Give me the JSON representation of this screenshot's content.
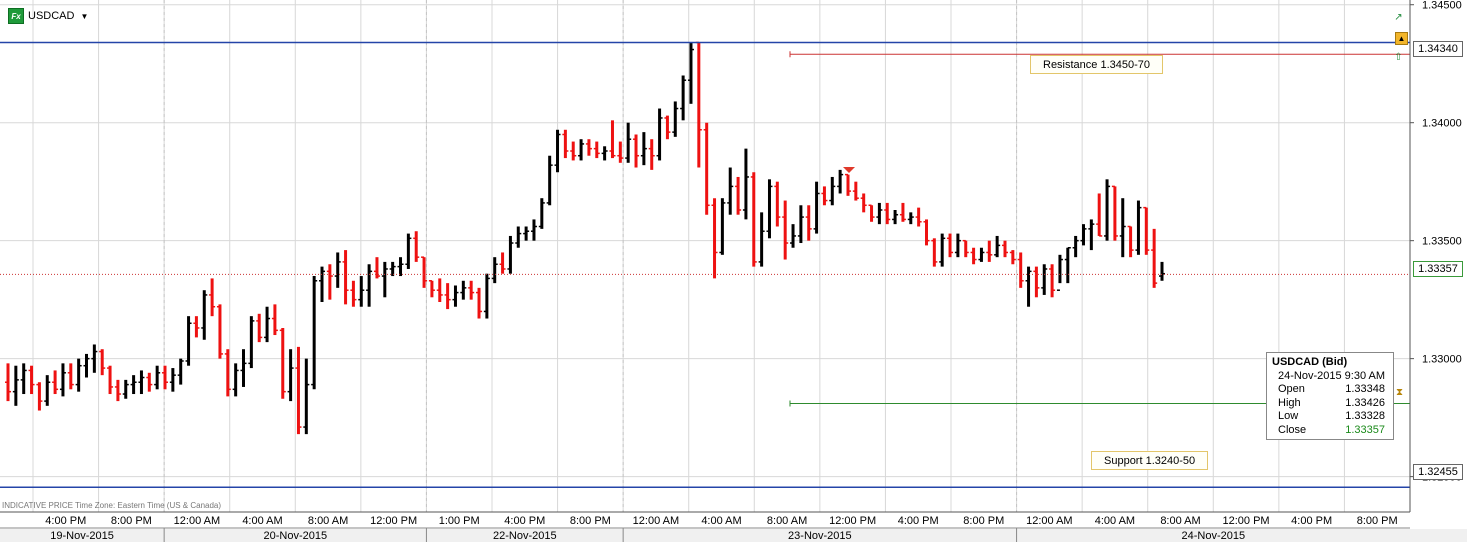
{
  "symbol": {
    "name": "USDCAD",
    "badge": "Fx",
    "dropdown_icon": "caret-down-icon"
  },
  "footer_note": "INDICATIVE PRICE   Time Zone: Eastern Time (US & Canada)",
  "colors": {
    "up_bar": "#000000",
    "down_bar": "#ee1111",
    "resistance_line": "#2444a8",
    "support_line": "#2444a8",
    "last_price_line": "#cc3333",
    "resistance_marker": "#cc3333",
    "support_marker": "#2e8b2e",
    "grid": "#d8d8d8"
  },
  "levels": {
    "resistance": {
      "label": "Resistance 1.3450-70",
      "value": 1.3434,
      "tag": "1.34340"
    },
    "support": {
      "label": "Support 1.3240-50",
      "value": 1.32455,
      "tag": "1.32455"
    },
    "last_price": {
      "value": 1.33357,
      "tag": "1.33357"
    },
    "resistance_marker_value": 1.3429,
    "support_marker_value": 1.3281
  },
  "info_box": {
    "title": "USDCAD (Bid)",
    "datetime": "24-Nov-2015 9:30 AM",
    "rows": [
      {
        "label": "Open",
        "value": "1.33348"
      },
      {
        "label": "High",
        "value": "1.33426"
      },
      {
        "label": "Low",
        "value": "1.33328"
      },
      {
        "label": "Close",
        "value": "1.33357"
      }
    ]
  },
  "right_icons": [
    "trend-up-icon",
    "collapse-up-icon",
    "alert-arrow-icon",
    "hourglass-icon"
  ],
  "chart_data": {
    "type": "ohlc",
    "title": "",
    "ylim": [
      1.3235,
      1.3452
    ],
    "yticks": [
      "1.34500",
      "1.34000",
      "1.33500",
      "1.33000",
      "1.32500"
    ],
    "ytick_values": [
      1.345,
      1.34,
      1.335,
      1.33,
      1.325
    ],
    "x_time_labels": [
      "4:00 PM",
      "8:00 PM",
      "12:00 AM",
      "4:00 AM",
      "8:00 AM",
      "12:00 PM",
      "1:00 PM",
      "4:00 PM",
      "8:00 PM",
      "12:00 AM",
      "4:00 AM",
      "8:00 AM",
      "12:00 PM",
      "4:00 PM",
      "8:00 PM",
      "12:00 AM",
      "4:00 AM",
      "8:00 AM",
      "12:00 PM",
      "4:00 PM",
      "8:00 PM"
    ],
    "x_date_labels": [
      "19-Nov-2015",
      "20-Nov-2015",
      "22-Nov-2015",
      "23-Nov-2015",
      "24-Nov-2015"
    ],
    "grid": true,
    "bars": [
      [
        1.329,
        1.3298,
        1.3282,
        1.3286
      ],
      [
        1.3286,
        1.3297,
        1.328,
        1.3291
      ],
      [
        1.3291,
        1.3298,
        1.3285,
        1.3295
      ],
      [
        1.3295,
        1.3297,
        1.3285,
        1.3289
      ],
      [
        1.3289,
        1.329,
        1.3278,
        1.3282
      ],
      [
        1.3282,
        1.3293,
        1.328,
        1.329
      ],
      [
        1.329,
        1.3295,
        1.3285,
        1.3287
      ],
      [
        1.3287,
        1.3298,
        1.3284,
        1.3294
      ],
      [
        1.3294,
        1.3298,
        1.3287,
        1.3289
      ],
      [
        1.3289,
        1.33,
        1.3286,
        1.3297
      ],
      [
        1.3297,
        1.3302,
        1.3292,
        1.33
      ],
      [
        1.33,
        1.3306,
        1.3294,
        1.3303
      ],
      [
        1.3303,
        1.3304,
        1.3293,
        1.3296
      ],
      [
        1.3296,
        1.3297,
        1.3285,
        1.3288
      ],
      [
        1.3288,
        1.3291,
        1.3282,
        1.3285
      ],
      [
        1.3285,
        1.3291,
        1.3283,
        1.3289
      ],
      [
        1.3289,
        1.3293,
        1.3285,
        1.329
      ],
      [
        1.329,
        1.3295,
        1.3285,
        1.3292
      ],
      [
        1.3292,
        1.3294,
        1.3286,
        1.3289
      ],
      [
        1.3289,
        1.3297,
        1.3287,
        1.3294
      ],
      [
        1.3294,
        1.3297,
        1.3287,
        1.329
      ],
      [
        1.329,
        1.3296,
        1.3286,
        1.3293
      ],
      [
        1.3293,
        1.33,
        1.3289,
        1.3299
      ],
      [
        1.3299,
        1.3318,
        1.3297,
        1.3315
      ],
      [
        1.3315,
        1.3318,
        1.3309,
        1.3313
      ],
      [
        1.3313,
        1.3329,
        1.3308,
        1.3327
      ],
      [
        1.3327,
        1.3334,
        1.3318,
        1.3322
      ],
      [
        1.3322,
        1.3323,
        1.33,
        1.3302
      ],
      [
        1.3302,
        1.3304,
        1.3284,
        1.3287
      ],
      [
        1.3287,
        1.3298,
        1.3284,
        1.3295
      ],
      [
        1.3295,
        1.3304,
        1.3288,
        1.3298
      ],
      [
        1.3298,
        1.3318,
        1.3296,
        1.3316
      ],
      [
        1.3316,
        1.3319,
        1.3307,
        1.3309
      ],
      [
        1.3309,
        1.3322,
        1.3307,
        1.3317
      ],
      [
        1.3317,
        1.3323,
        1.331,
        1.3312
      ],
      [
        1.3312,
        1.3313,
        1.3283,
        1.3286
      ],
      [
        1.3286,
        1.3304,
        1.3282,
        1.3296
      ],
      [
        1.3296,
        1.3305,
        1.3268,
        1.3271
      ],
      [
        1.3271,
        1.33,
        1.3268,
        1.3289
      ],
      [
        1.3289,
        1.3335,
        1.3287,
        1.3333
      ],
      [
        1.3333,
        1.3339,
        1.3324,
        1.3337
      ],
      [
        1.3337,
        1.334,
        1.3325,
        1.3335
      ],
      [
        1.3335,
        1.3345,
        1.333,
        1.3341
      ],
      [
        1.3341,
        1.3346,
        1.3323,
        1.3329
      ],
      [
        1.3329,
        1.3333,
        1.3322,
        1.3325
      ],
      [
        1.3325,
        1.3335,
        1.3322,
        1.3329
      ],
      [
        1.3329,
        1.334,
        1.3322,
        1.3337
      ],
      [
        1.3337,
        1.3343,
        1.3334,
        1.3335
      ],
      [
        1.3335,
        1.3341,
        1.3326,
        1.3338
      ],
      [
        1.3338,
        1.3341,
        1.3335,
        1.3339
      ],
      [
        1.3339,
        1.3343,
        1.3335,
        1.334
      ],
      [
        1.334,
        1.3353,
        1.3338,
        1.3351
      ],
      [
        1.3351,
        1.3354,
        1.3341,
        1.3343
      ],
      [
        1.3343,
        1.3343,
        1.333,
        1.3333
      ],
      [
        1.3333,
        1.3333,
        1.3326,
        1.3329
      ],
      [
        1.3329,
        1.3334,
        1.3324,
        1.3327
      ],
      [
        1.3327,
        1.3332,
        1.3321,
        1.3325
      ],
      [
        1.3325,
        1.3331,
        1.3322,
        1.3328
      ],
      [
        1.3328,
        1.3333,
        1.3325,
        1.333
      ],
      [
        1.333,
        1.3333,
        1.3325,
        1.3328
      ],
      [
        1.3328,
        1.333,
        1.3317,
        1.332
      ],
      [
        1.332,
        1.3336,
        1.3317,
        1.3334
      ],
      [
        1.3334,
        1.3343,
        1.3332,
        1.334
      ],
      [
        1.334,
        1.3345,
        1.3336,
        1.3338
      ],
      [
        1.3338,
        1.3352,
        1.3336,
        1.3349
      ],
      [
        1.3349,
        1.3356,
        1.3347,
        1.3353
      ],
      [
        1.3353,
        1.3356,
        1.335,
        1.3354
      ],
      [
        1.3354,
        1.3359,
        1.335,
        1.3356
      ],
      [
        1.3356,
        1.3368,
        1.3355,
        1.3366
      ],
      [
        1.3366,
        1.3386,
        1.3365,
        1.3382
      ],
      [
        1.3382,
        1.3397,
        1.3379,
        1.3395
      ],
      [
        1.3395,
        1.3397,
        1.3385,
        1.3388
      ],
      [
        1.3388,
        1.3392,
        1.3384,
        1.3386
      ],
      [
        1.3386,
        1.3393,
        1.3384,
        1.3391
      ],
      [
        1.3391,
        1.3393,
        1.3386,
        1.3389
      ],
      [
        1.3389,
        1.3392,
        1.3385,
        1.3387
      ],
      [
        1.3387,
        1.339,
        1.3384,
        1.3388
      ],
      [
        1.3388,
        1.3401,
        1.3385,
        1.3386
      ],
      [
        1.3386,
        1.3392,
        1.3383,
        1.3385
      ],
      [
        1.3385,
        1.34,
        1.3383,
        1.3393
      ],
      [
        1.3393,
        1.3395,
        1.3381,
        1.3386
      ],
      [
        1.3386,
        1.3396,
        1.3382,
        1.3389
      ],
      [
        1.3389,
        1.3393,
        1.338,
        1.3386
      ],
      [
        1.3386,
        1.3406,
        1.3384,
        1.3402
      ],
      [
        1.3402,
        1.3403,
        1.3393,
        1.3396
      ],
      [
        1.3396,
        1.3409,
        1.3394,
        1.3406
      ],
      [
        1.3406,
        1.342,
        1.3401,
        1.3418
      ],
      [
        1.3418,
        1.3434,
        1.3408,
        1.3431
      ],
      [
        1.3434,
        1.3434,
        1.3381,
        1.3397
      ],
      [
        1.3397,
        1.34,
        1.3361,
        1.3365
      ],
      [
        1.3365,
        1.3368,
        1.3334,
        1.3345
      ],
      [
        1.3345,
        1.3368,
        1.3344,
        1.3366
      ],
      [
        1.3366,
        1.3381,
        1.3361,
        1.3373
      ],
      [
        1.3373,
        1.3377,
        1.3361,
        1.3363
      ],
      [
        1.3363,
        1.3389,
        1.3359,
        1.3377
      ],
      [
        1.3377,
        1.3379,
        1.3339,
        1.3341
      ],
      [
        1.3341,
        1.3362,
        1.3339,
        1.3354
      ],
      [
        1.3354,
        1.3376,
        1.3351,
        1.3373
      ],
      [
        1.3373,
        1.3375,
        1.3356,
        1.336
      ],
      [
        1.336,
        1.3367,
        1.3342,
        1.3349
      ],
      [
        1.3349,
        1.3357,
        1.3347,
        1.3352
      ],
      [
        1.3352,
        1.3365,
        1.3349,
        1.336
      ],
      [
        1.336,
        1.3365,
        1.335,
        1.3355
      ],
      [
        1.3355,
        1.3375,
        1.3353,
        1.337
      ],
      [
        1.337,
        1.3373,
        1.3365,
        1.3367
      ],
      [
        1.3367,
        1.3377,
        1.3365,
        1.3373
      ],
      [
        1.3373,
        1.338,
        1.337,
        1.3378
      ],
      [
        1.3378,
        1.3378,
        1.3369,
        1.3371
      ],
      [
        1.3371,
        1.3375,
        1.3367,
        1.3368
      ],
      [
        1.3368,
        1.337,
        1.3362,
        1.3365
      ],
      [
        1.3365,
        1.3365,
        1.3358,
        1.336
      ],
      [
        1.336,
        1.3366,
        1.3357,
        1.3363
      ],
      [
        1.3363,
        1.3366,
        1.3357,
        1.3359
      ],
      [
        1.3359,
        1.3363,
        1.3357,
        1.3361
      ],
      [
        1.3361,
        1.3366,
        1.3358,
        1.3359
      ],
      [
        1.3359,
        1.3362,
        1.3357,
        1.336
      ],
      [
        1.336,
        1.3364,
        1.3356,
        1.3358
      ],
      [
        1.3358,
        1.3359,
        1.3348,
        1.335
      ],
      [
        1.335,
        1.3351,
        1.3339,
        1.3341
      ],
      [
        1.3341,
        1.3353,
        1.3339,
        1.3351
      ],
      [
        1.3351,
        1.3353,
        1.3343,
        1.3345
      ],
      [
        1.3345,
        1.3353,
        1.3343,
        1.335
      ],
      [
        1.335,
        1.335,
        1.3343,
        1.3345
      ],
      [
        1.3345,
        1.3347,
        1.334,
        1.3342
      ],
      [
        1.3342,
        1.3347,
        1.3341,
        1.3345
      ],
      [
        1.3345,
        1.335,
        1.3341,
        1.3344
      ],
      [
        1.3344,
        1.3352,
        1.3343,
        1.3348
      ],
      [
        1.3348,
        1.335,
        1.3343,
        1.3345
      ],
      [
        1.3345,
        1.3346,
        1.334,
        1.3342
      ],
      [
        1.3342,
        1.3345,
        1.333,
        1.3333
      ],
      [
        1.3333,
        1.3339,
        1.3322,
        1.3337
      ],
      [
        1.3337,
        1.3339,
        1.3326,
        1.333
      ],
      [
        1.333,
        1.334,
        1.3327,
        1.3338
      ],
      [
        1.3338,
        1.334,
        1.3326,
        1.3329
      ],
      [
        1.3329,
        1.3344,
        1.3332,
        1.3342
      ],
      [
        1.3342,
        1.3347,
        1.3332,
        1.3347
      ],
      [
        1.3347,
        1.3352,
        1.3343,
        1.335
      ],
      [
        1.335,
        1.3357,
        1.3348,
        1.3355
      ],
      [
        1.3355,
        1.3359,
        1.3346,
        1.3357
      ],
      [
        1.3357,
        1.337,
        1.3352,
        1.3352
      ],
      [
        1.3352,
        1.3376,
        1.335,
        1.3373
      ],
      [
        1.3373,
        1.3373,
        1.335,
        1.3352
      ],
      [
        1.3352,
        1.3368,
        1.3343,
        1.3356
      ],
      [
        1.3356,
        1.3356,
        1.3343,
        1.3346
      ],
      [
        1.3346,
        1.3367,
        1.3344,
        1.3364
      ],
      [
        1.3364,
        1.3364,
        1.3344,
        1.3346
      ],
      [
        1.3346,
        1.3355,
        1.333,
        1.3332
      ],
      [
        1.3335,
        1.3341,
        1.3333,
        1.3336
      ]
    ]
  }
}
